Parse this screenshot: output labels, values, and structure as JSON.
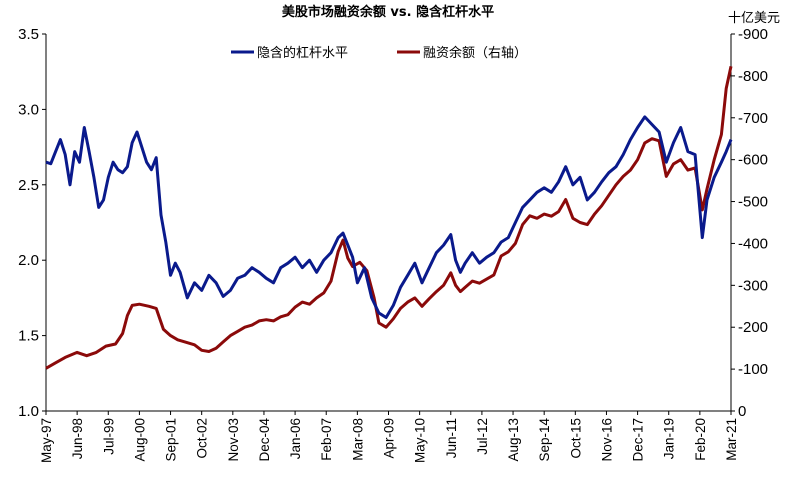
{
  "chart_data": {
    "type": "line",
    "title": "美股市场融资余额 vs. 隐含杠杆水平",
    "right_unit": "十亿美元",
    "x_tick_labels": [
      "May-97",
      "Jun-98",
      "Jul-99",
      "Aug-00",
      "Sep-01",
      "Oct-02",
      "Nov-03",
      "Dec-04",
      "Jan-06",
      "Feb-07",
      "Mar-08",
      "Apr-09",
      "May-10",
      "Jun-11",
      "Jul-12",
      "Aug-13",
      "Sep-14",
      "Oct-15",
      "Nov-16",
      "Dec-17",
      "Jan-19",
      "Feb-20",
      "Mar-21"
    ],
    "x_start": "1997-05",
    "x_end": "2021-03",
    "left_axis": {
      "min": 1.0,
      "max": 3.5,
      "ticks": [
        "1.0",
        "1.5",
        "2.0",
        "2.5",
        "3.0",
        "3.5"
      ]
    },
    "right_axis": {
      "min": 0,
      "max": 900,
      "ticks": [
        "0",
        "-100",
        "-200",
        "-300",
        "-400",
        "-500",
        "-600",
        "-700",
        "-800",
        "-900"
      ]
    },
    "series": [
      {
        "name": "隐含的杠杆水平",
        "axis": "left",
        "color": "#0a1a8c",
        "points": [
          [
            "1997-05",
            2.65
          ],
          [
            "1997-07",
            2.64
          ],
          [
            "1997-09",
            2.72
          ],
          [
            "1997-11",
            2.8
          ],
          [
            "1998-01",
            2.7
          ],
          [
            "1998-03",
            2.5
          ],
          [
            "1998-05",
            2.72
          ],
          [
            "1998-07",
            2.65
          ],
          [
            "1998-09",
            2.88
          ],
          [
            "1998-11",
            2.72
          ],
          [
            "1999-01",
            2.55
          ],
          [
            "1999-03",
            2.35
          ],
          [
            "1999-05",
            2.4
          ],
          [
            "1999-07",
            2.55
          ],
          [
            "1999-09",
            2.65
          ],
          [
            "1999-11",
            2.6
          ],
          [
            "2000-01",
            2.58
          ],
          [
            "2000-03",
            2.62
          ],
          [
            "2000-05",
            2.78
          ],
          [
            "2000-07",
            2.85
          ],
          [
            "2000-09",
            2.75
          ],
          [
            "2000-11",
            2.65
          ],
          [
            "2001-01",
            2.6
          ],
          [
            "2001-03",
            2.68
          ],
          [
            "2001-05",
            2.3
          ],
          [
            "2001-07",
            2.12
          ],
          [
            "2001-09",
            1.9
          ],
          [
            "2001-11",
            1.98
          ],
          [
            "2002-01",
            1.92
          ],
          [
            "2002-04",
            1.75
          ],
          [
            "2002-07",
            1.85
          ],
          [
            "2002-10",
            1.8
          ],
          [
            "2003-01",
            1.9
          ],
          [
            "2003-04",
            1.85
          ],
          [
            "2003-07",
            1.76
          ],
          [
            "2003-10",
            1.8
          ],
          [
            "2004-01",
            1.88
          ],
          [
            "2004-04",
            1.9
          ],
          [
            "2004-07",
            1.95
          ],
          [
            "2004-10",
            1.92
          ],
          [
            "2005-01",
            1.88
          ],
          [
            "2005-04",
            1.85
          ],
          [
            "2005-07",
            1.95
          ],
          [
            "2005-10",
            1.98
          ],
          [
            "2006-01",
            2.02
          ],
          [
            "2006-04",
            1.95
          ],
          [
            "2006-07",
            2.0
          ],
          [
            "2006-10",
            1.92
          ],
          [
            "2007-01",
            2.0
          ],
          [
            "2007-04",
            2.05
          ],
          [
            "2007-07",
            2.15
          ],
          [
            "2007-09",
            2.18
          ],
          [
            "2007-11",
            2.1
          ],
          [
            "2008-01",
            2.02
          ],
          [
            "2008-03",
            1.85
          ],
          [
            "2008-06",
            1.95
          ],
          [
            "2008-09",
            1.75
          ],
          [
            "2008-12",
            1.65
          ],
          [
            "2009-03",
            1.62
          ],
          [
            "2009-06",
            1.7
          ],
          [
            "2009-09",
            1.82
          ],
          [
            "2009-12",
            1.9
          ],
          [
            "2010-03",
            1.98
          ],
          [
            "2010-06",
            1.85
          ],
          [
            "2010-09",
            1.95
          ],
          [
            "2010-12",
            2.05
          ],
          [
            "2011-03",
            2.1
          ],
          [
            "2011-06",
            2.17
          ],
          [
            "2011-08",
            2.0
          ],
          [
            "2011-10",
            1.92
          ],
          [
            "2011-12",
            1.98
          ],
          [
            "2012-03",
            2.05
          ],
          [
            "2012-06",
            1.98
          ],
          [
            "2012-09",
            2.02
          ],
          [
            "2012-12",
            2.05
          ],
          [
            "2013-03",
            2.12
          ],
          [
            "2013-06",
            2.15
          ],
          [
            "2013-09",
            2.25
          ],
          [
            "2013-12",
            2.35
          ],
          [
            "2014-03",
            2.4
          ],
          [
            "2014-06",
            2.45
          ],
          [
            "2014-09",
            2.48
          ],
          [
            "2014-12",
            2.45
          ],
          [
            "2015-03",
            2.52
          ],
          [
            "2015-06",
            2.62
          ],
          [
            "2015-09",
            2.5
          ],
          [
            "2015-12",
            2.55
          ],
          [
            "2016-03",
            2.4
          ],
          [
            "2016-06",
            2.45
          ],
          [
            "2016-09",
            2.52
          ],
          [
            "2016-12",
            2.58
          ],
          [
            "2017-03",
            2.62
          ],
          [
            "2017-06",
            2.7
          ],
          [
            "2017-09",
            2.8
          ],
          [
            "2017-12",
            2.88
          ],
          [
            "2018-03",
            2.95
          ],
          [
            "2018-06",
            2.9
          ],
          [
            "2018-09",
            2.85
          ],
          [
            "2018-12",
            2.65
          ],
          [
            "2019-03",
            2.78
          ],
          [
            "2019-06",
            2.88
          ],
          [
            "2019-09",
            2.72
          ],
          [
            "2019-12",
            2.7
          ],
          [
            "2020-03",
            2.15
          ],
          [
            "2020-05",
            2.4
          ],
          [
            "2020-08",
            2.55
          ],
          [
            "2020-11",
            2.65
          ],
          [
            "2021-01",
            2.72
          ],
          [
            "2021-03",
            2.8
          ]
        ]
      },
      {
        "name": "融资余额（右轴）",
        "axis": "right",
        "color": "#8b0a0a",
        "points": [
          [
            "1997-05",
            102
          ],
          [
            "1997-09",
            115
          ],
          [
            "1998-01",
            128
          ],
          [
            "1998-06",
            140
          ],
          [
            "1998-10",
            132
          ],
          [
            "1999-02",
            140
          ],
          [
            "1999-06",
            155
          ],
          [
            "1999-10",
            160
          ],
          [
            "2000-01",
            185
          ],
          [
            "2000-03",
            228
          ],
          [
            "2000-05",
            252
          ],
          [
            "2000-08",
            255
          ],
          [
            "2000-12",
            250
          ],
          [
            "2001-03",
            245
          ],
          [
            "2001-06",
            195
          ],
          [
            "2001-09",
            180
          ],
          [
            "2001-12",
            170
          ],
          [
            "2002-03",
            165
          ],
          [
            "2002-07",
            158
          ],
          [
            "2002-10",
            145
          ],
          [
            "2003-01",
            142
          ],
          [
            "2003-04",
            150
          ],
          [
            "2003-07",
            165
          ],
          [
            "2003-10",
            180
          ],
          [
            "2004-01",
            190
          ],
          [
            "2004-04",
            200
          ],
          [
            "2004-07",
            205
          ],
          [
            "2004-10",
            215
          ],
          [
            "2005-01",
            218
          ],
          [
            "2005-04",
            215
          ],
          [
            "2005-07",
            225
          ],
          [
            "2005-10",
            230
          ],
          [
            "2006-01",
            248
          ],
          [
            "2006-04",
            260
          ],
          [
            "2006-07",
            255
          ],
          [
            "2006-10",
            270
          ],
          [
            "2007-01",
            282
          ],
          [
            "2007-04",
            310
          ],
          [
            "2007-07",
            381
          ],
          [
            "2007-09",
            408
          ],
          [
            "2007-11",
            365
          ],
          [
            "2008-01",
            345
          ],
          [
            "2008-04",
            355
          ],
          [
            "2008-07",
            335
          ],
          [
            "2008-10",
            270
          ],
          [
            "2008-12",
            210
          ],
          [
            "2009-03",
            200
          ],
          [
            "2009-06",
            220
          ],
          [
            "2009-09",
            245
          ],
          [
            "2009-12",
            260
          ],
          [
            "2010-03",
            270
          ],
          [
            "2010-06",
            250
          ],
          [
            "2010-09",
            268
          ],
          [
            "2010-12",
            285
          ],
          [
            "2011-03",
            300
          ],
          [
            "2011-06",
            330
          ],
          [
            "2011-08",
            300
          ],
          [
            "2011-10",
            285
          ],
          [
            "2011-12",
            295
          ],
          [
            "2012-03",
            310
          ],
          [
            "2012-06",
            305
          ],
          [
            "2012-09",
            315
          ],
          [
            "2012-12",
            325
          ],
          [
            "2013-03",
            370
          ],
          [
            "2013-06",
            380
          ],
          [
            "2013-09",
            400
          ],
          [
            "2013-12",
            445
          ],
          [
            "2014-03",
            466
          ],
          [
            "2014-06",
            460
          ],
          [
            "2014-09",
            470
          ],
          [
            "2014-12",
            465
          ],
          [
            "2015-03",
            476
          ],
          [
            "2015-06",
            505
          ],
          [
            "2015-09",
            460
          ],
          [
            "2015-12",
            450
          ],
          [
            "2016-03",
            445
          ],
          [
            "2016-06",
            470
          ],
          [
            "2016-09",
            490
          ],
          [
            "2016-12",
            515
          ],
          [
            "2017-03",
            540
          ],
          [
            "2017-06",
            560
          ],
          [
            "2017-09",
            575
          ],
          [
            "2017-12",
            600
          ],
          [
            "2018-03",
            640
          ],
          [
            "2018-06",
            650
          ],
          [
            "2018-09",
            645
          ],
          [
            "2018-12",
            560
          ],
          [
            "2019-03",
            590
          ],
          [
            "2019-06",
            600
          ],
          [
            "2019-09",
            575
          ],
          [
            "2019-12",
            580
          ],
          [
            "2020-03",
            480
          ],
          [
            "2020-05",
            530
          ],
          [
            "2020-08",
            600
          ],
          [
            "2020-11",
            660
          ],
          [
            "2021-01",
            770
          ],
          [
            "2021-03",
            823
          ]
        ]
      }
    ],
    "legend_position": "top-center",
    "grid": false
  }
}
